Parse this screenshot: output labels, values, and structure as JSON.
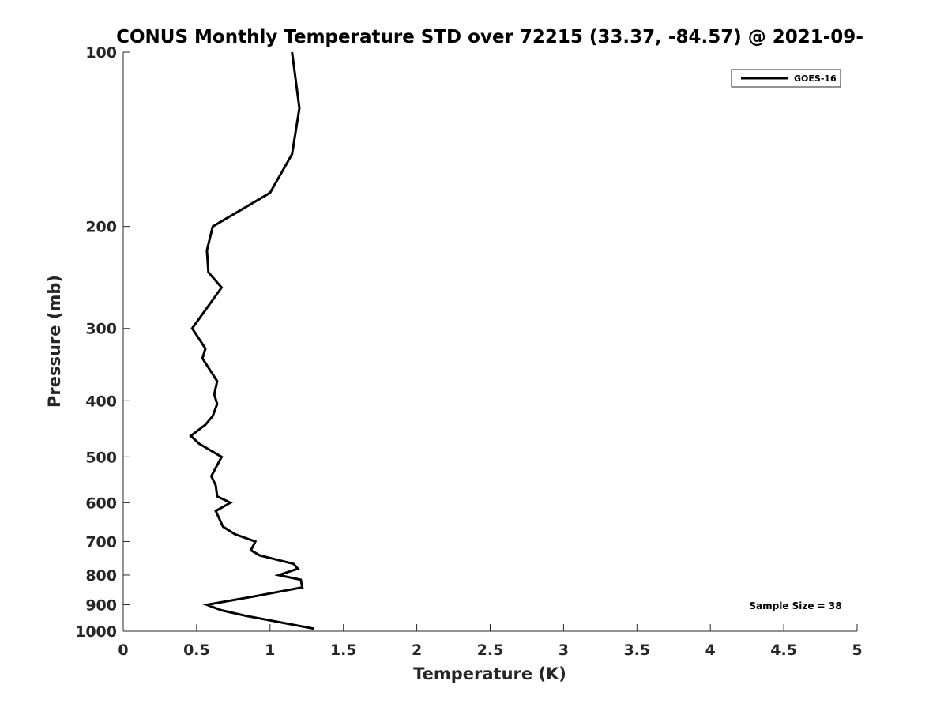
{
  "chart_data": {
    "type": "line",
    "title": "CONUS Monthly Temperature STD over 72215 (33.37, -84.57) @ 2021-09-",
    "xlabel": "Temperature (K)",
    "ylabel": "Pressure (mb)",
    "xlim": [
      0,
      5
    ],
    "ylim": [
      1000,
      100
    ],
    "y_scale": "log",
    "y_reversed": true,
    "grid": false,
    "legend_position": "top-right",
    "x_ticks": [
      0,
      0.5,
      1,
      1.5,
      2,
      2.5,
      3,
      3.5,
      4,
      4.5,
      5
    ],
    "x_tick_labels": [
      "0",
      "0.5",
      "1",
      "1.5",
      "2",
      "2.5",
      "3",
      "3.5",
      "4",
      "4.5",
      "5"
    ],
    "y_ticks": [
      100,
      200,
      300,
      400,
      500,
      600,
      700,
      800,
      900,
      1000
    ],
    "y_tick_labels": [
      "100",
      "200",
      "300",
      "400",
      "500",
      "600",
      "700",
      "800",
      "900",
      "1000"
    ],
    "annotation": "Sample Size = 38",
    "series": [
      {
        "name": "GOES-16",
        "color": "#000000",
        "points": [
          {
            "x": 1.15,
            "y": 100
          },
          {
            "x": 1.2,
            "y": 125
          },
          {
            "x": 1.15,
            "y": 150
          },
          {
            "x": 1.0,
            "y": 175
          },
          {
            "x": 0.76,
            "y": 190
          },
          {
            "x": 0.61,
            "y": 200
          },
          {
            "x": 0.57,
            "y": 220
          },
          {
            "x": 0.58,
            "y": 240
          },
          {
            "x": 0.67,
            "y": 255
          },
          {
            "x": 0.47,
            "y": 300
          },
          {
            "x": 0.56,
            "y": 325
          },
          {
            "x": 0.54,
            "y": 338
          },
          {
            "x": 0.64,
            "y": 370
          },
          {
            "x": 0.62,
            "y": 390
          },
          {
            "x": 0.64,
            "y": 405
          },
          {
            "x": 0.61,
            "y": 425
          },
          {
            "x": 0.56,
            "y": 440
          },
          {
            "x": 0.46,
            "y": 460
          },
          {
            "x": 0.52,
            "y": 475
          },
          {
            "x": 0.67,
            "y": 500
          },
          {
            "x": 0.6,
            "y": 540
          },
          {
            "x": 0.63,
            "y": 560
          },
          {
            "x": 0.64,
            "y": 585
          },
          {
            "x": 0.73,
            "y": 600
          },
          {
            "x": 0.63,
            "y": 620
          },
          {
            "x": 0.68,
            "y": 660
          },
          {
            "x": 0.76,
            "y": 680
          },
          {
            "x": 0.9,
            "y": 700
          },
          {
            "x": 0.87,
            "y": 725
          },
          {
            "x": 0.93,
            "y": 740
          },
          {
            "x": 1.16,
            "y": 765
          },
          {
            "x": 1.19,
            "y": 780
          },
          {
            "x": 1.06,
            "y": 800
          },
          {
            "x": 1.21,
            "y": 815
          },
          {
            "x": 1.22,
            "y": 840
          },
          {
            "x": 0.9,
            "y": 870
          },
          {
            "x": 0.57,
            "y": 900
          },
          {
            "x": 0.67,
            "y": 920
          },
          {
            "x": 0.83,
            "y": 940
          },
          {
            "x": 1.3,
            "y": 990
          }
        ]
      }
    ]
  }
}
